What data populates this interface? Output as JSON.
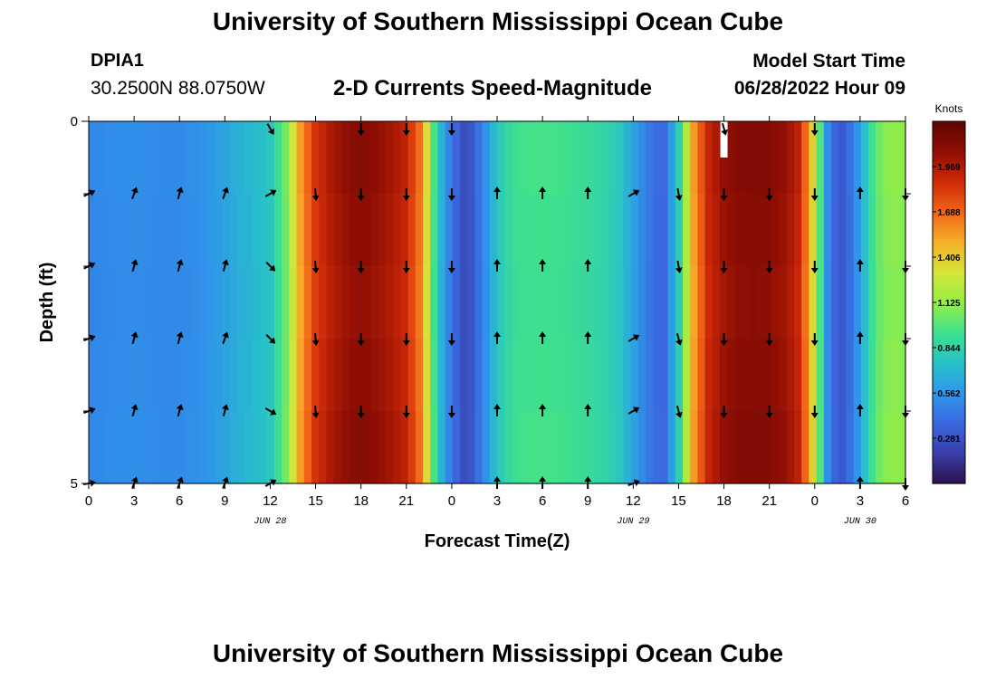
{
  "header": {
    "title": "University of Southern Mississippi Ocean Cube",
    "station": "DPIA1",
    "coordinates": "30.2500N  88.0750W",
    "subtitle": "2-D Currents Speed-Magnitude",
    "model_start_label": "Model Start Time",
    "model_start_value": "06/28/2022 Hour 09"
  },
  "footer": {
    "title": "University of Southern Mississippi Ocean Cube"
  },
  "chart_data": {
    "type": "heatmap",
    "xlabel": "Forecast Time(Z)",
    "ylabel": "Depth (ft)",
    "x_ticks": [
      "0",
      "3",
      "6",
      "9",
      "12",
      "15",
      "18",
      "21",
      "0",
      "3",
      "6",
      "9",
      "12",
      "15",
      "18",
      "21",
      "0",
      "3",
      "6"
    ],
    "y_ticks": [
      "0",
      "5"
    ],
    "ylim": [
      0,
      5
    ],
    "date_labels": [
      {
        "label": "JUN 28",
        "tick_index": 4
      },
      {
        "label": "JUN 29",
        "tick_index": 12
      },
      {
        "label": "JUN 30",
        "tick_index": 17
      }
    ],
    "colorbar": {
      "unit": "Knots",
      "range": [
        0,
        2.25
      ],
      "ticks": [
        "0.281",
        "0.562",
        "0.844",
        "1.125",
        "1.406",
        "1.688",
        "1.969"
      ],
      "colors": [
        "#2d1050",
        "#3a3ea8",
        "#3a68e0",
        "#2f96ea",
        "#27c2c8",
        "#3ee08e",
        "#96ee46",
        "#d6e43a",
        "#f6b028",
        "#f06418",
        "#cf2a08",
        "#8e0e04",
        "#5e0600"
      ]
    },
    "time_hours": [
      0,
      1,
      2,
      3,
      4,
      5,
      6,
      7,
      8,
      9,
      10,
      11,
      12,
      13,
      14,
      15,
      16,
      17,
      18,
      19,
      20,
      21,
      22,
      23,
      24,
      25,
      26,
      27,
      28,
      29,
      30,
      31,
      32,
      33,
      34,
      35,
      36,
      37,
      38,
      39,
      40,
      41,
      42,
      43,
      44,
      45,
      46,
      47,
      48,
      49,
      50,
      51,
      52,
      53,
      54
    ],
    "speed_knots": [
      0.5,
      0.52,
      0.54,
      0.54,
      0.53,
      0.52,
      0.52,
      0.54,
      0.57,
      0.62,
      0.68,
      0.72,
      0.78,
      1.05,
      1.55,
      1.85,
      1.98,
      2.06,
      2.1,
      2.06,
      2.0,
      1.92,
      1.62,
      0.82,
      0.42,
      0.22,
      0.48,
      0.78,
      0.92,
      0.95,
      0.95,
      0.95,
      0.92,
      0.9,
      0.86,
      0.8,
      0.62,
      0.44,
      0.36,
      0.8,
      1.55,
      1.92,
      2.05,
      2.1,
      2.12,
      2.1,
      2.05,
      1.92,
      1.3,
      0.4,
      0.3,
      0.62,
      1.02,
      1.12,
      1.1
    ],
    "depth_factor": [
      1.0,
      0.99,
      0.98,
      0.99,
      1.0
    ],
    "arrow_rows": [
      0.1,
      1.0,
      2.0,
      3.0,
      4.0,
      5.0
    ],
    "arrow_times": [
      0,
      3,
      6,
      9,
      12,
      15,
      18,
      21,
      24,
      27,
      30,
      33,
      36,
      39,
      42,
      45,
      48,
      51,
      54
    ],
    "arrow_directions_deg": [
      [
        null,
        null,
        null,
        null,
        150,
        null,
        180,
        180,
        180,
        null,
        null,
        null,
        null,
        null,
        165,
        null,
        180,
        null,
        null
      ],
      [
        65,
        20,
        15,
        20,
        60,
        175,
        180,
        180,
        180,
        0,
        0,
        0,
        60,
        170,
        180,
        180,
        180,
        0,
        180
      ],
      [
        65,
        15,
        15,
        15,
        135,
        175,
        180,
        180,
        180,
        0,
        0,
        0,
        null,
        170,
        180,
        180,
        180,
        0,
        180
      ],
      [
        70,
        15,
        15,
        20,
        135,
        175,
        180,
        180,
        180,
        0,
        0,
        0,
        60,
        165,
        180,
        180,
        180,
        0,
        180
      ],
      [
        70,
        15,
        15,
        15,
        120,
        175,
        180,
        180,
        180,
        0,
        0,
        0,
        60,
        165,
        180,
        180,
        180,
        0,
        180
      ],
      [
        80,
        20,
        20,
        20,
        60,
        null,
        null,
        null,
        null,
        0,
        0,
        0,
        70,
        null,
        null,
        null,
        null,
        0,
        180
      ]
    ],
    "missing_markers": [
      {
        "time_hour": 42,
        "depth_from": 0,
        "depth_to": 0.5
      }
    ]
  }
}
